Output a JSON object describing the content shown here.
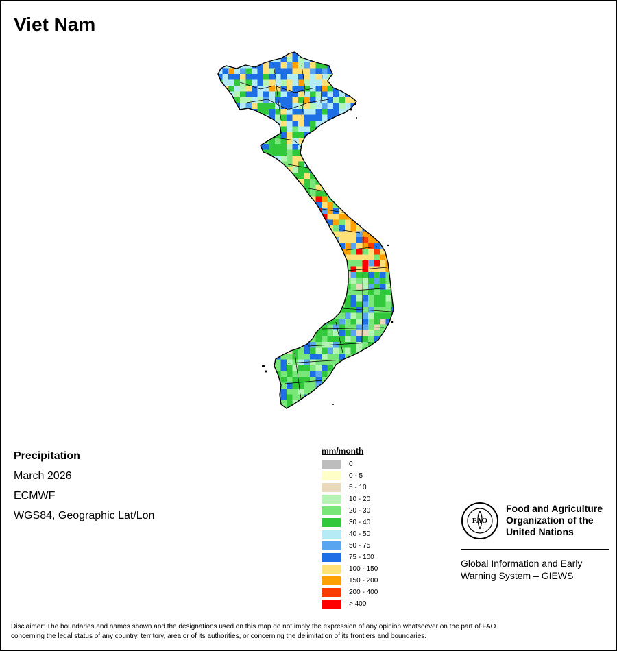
{
  "title": "Viet Nam",
  "meta": {
    "variable": "Precipitation",
    "period": "March 2026",
    "source": "ECMWF",
    "projection": "WGS84, Geographic Lat/Lon"
  },
  "legend": {
    "title": "mm/month",
    "classes": [
      {
        "label": "0",
        "color": "#bdbdbd"
      },
      {
        "label": "0 - 5",
        "color": "#ffffc8"
      },
      {
        "label": "5 - 10",
        "color": "#ead8bd"
      },
      {
        "label": "10 - 20",
        "color": "#b4f4b4"
      },
      {
        "label": "20 - 30",
        "color": "#78e678"
      },
      {
        "label": "30 - 40",
        "color": "#32c83c"
      },
      {
        "label": "40 - 50",
        "color": "#b4ebf5"
      },
      {
        "label": "50 - 75",
        "color": "#5aa5ef"
      },
      {
        "label": "75 - 100",
        "color": "#1e6ee6"
      },
      {
        "label": "100 - 150",
        "color": "#ffe178"
      },
      {
        "label": "150 - 200",
        "color": "#ffa000"
      },
      {
        "label": "200 - 400",
        "color": "#ff3c00"
      },
      {
        "label": "> 400",
        "color": "#ff0000"
      }
    ]
  },
  "organization": {
    "name_line1": "Food and Agriculture",
    "name_line2": "Organization of the",
    "name_line3": "United Nations",
    "logo_text": "FAO",
    "system_line1": "Global Information and Early",
    "system_line2": "Warning System – GIEWS"
  },
  "disclaimer_line1": "Disclaimer: The boundaries and names shown and the designations used on this map do not imply the expression of any opinion whatsoever on the part of FAO",
  "disclaimer_line2": "concerning the legal status of any country, territory, area or of its authorities, or concerning the delimitation of its frontiers and boundaries."
}
